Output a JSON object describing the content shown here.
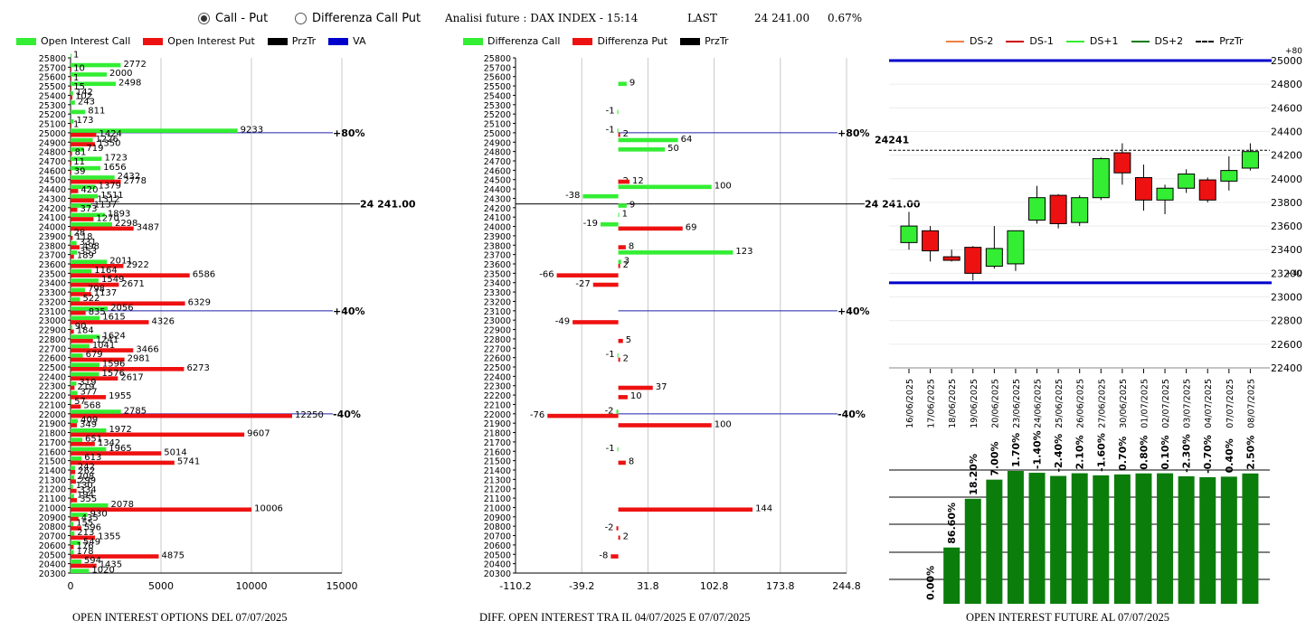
{
  "header": {
    "radio_call_put": "Call - Put",
    "radio_diff": "Differenza Call Put",
    "title": "Analisi future : DAX INDEX - 15:14",
    "last_label": "LAST",
    "last_value": "24 241.00",
    "change": "0.67%"
  },
  "legend1": {
    "a": "Open Interest Call",
    "b": "Open Interest Put",
    "c": "PrzTr",
    "d": "VA"
  },
  "legend2": {
    "a": "Differenza Call",
    "b": "Differenza Put",
    "c": "PrzTr"
  },
  "legend3": {
    "a": "DS-2",
    "b": "DS-1",
    "c": "DS+1",
    "d": "DS+2",
    "e": "PrzTr"
  },
  "footers": {
    "f1": "OPEN INTEREST OPTIONS DEL 07/07/2025",
    "f2": "DIFF. OPEN INTEREST TRA IL 04/07/2025 E 07/07/2025",
    "f3": "OPEN INTEREST FUTURE AL 07/07/2025"
  },
  "colors": {
    "call": "#33ee33",
    "put": "#ee1111",
    "przTr": "#000000",
    "va": "#0000cc",
    "vol": "#0b7d0b",
    "up": "#33ee33",
    "down": "#ee1111"
  },
  "chart_data": [
    {
      "type": "bar",
      "title": "OPEN INTEREST OPTIONS DEL 07/07/2025",
      "orientation": "horizontal",
      "strike_range": [
        20300,
        25800
      ],
      "xlim": [
        0,
        15000
      ],
      "x_ticks": [
        0,
        5000,
        10000,
        15000
      ],
      "price_line": {
        "strike": 24241,
        "label": "24 241.00"
      },
      "markers": [
        {
          "strike": 25000,
          "label": "+80%"
        },
        {
          "strike": 23100,
          "label": "+40%"
        },
        {
          "strike": 22000,
          "label": "-40%"
        }
      ],
      "bars": [
        [
          "call",
          25800,
          1
        ],
        [
          "call",
          25700,
          2772
        ],
        [
          "put",
          25700,
          10
        ],
        [
          "call",
          25600,
          2000
        ],
        [
          "put",
          25600,
          1
        ],
        [
          "call",
          25500,
          2498
        ],
        [
          "put",
          25500,
          15
        ],
        [
          "call",
          25400,
          142
        ],
        [
          "put",
          25400,
          102
        ],
        [
          "call",
          25300,
          243
        ],
        [
          "call",
          25200,
          811
        ],
        [
          "call",
          25100,
          173
        ],
        [
          "put",
          25100,
          1
        ],
        [
          "call",
          25000,
          9233
        ],
        [
          "put",
          25000,
          1424
        ],
        [
          "call",
          24900,
          1226
        ],
        [
          "put",
          24900,
          1350
        ],
        [
          "call",
          24800,
          719
        ],
        [
          "put",
          24800,
          81
        ],
        [
          "call",
          24700,
          1723
        ],
        [
          "put",
          24700,
          11
        ],
        [
          "call",
          24600,
          1656
        ],
        [
          "put",
          24600,
          39
        ],
        [
          "call",
          24500,
          2432
        ],
        [
          "put",
          24500,
          2778
        ],
        [
          "call",
          24400,
          1379
        ],
        [
          "put",
          24400,
          420
        ],
        [
          "call",
          24300,
          1511
        ],
        [
          "put",
          24300,
          1312
        ],
        [
          "call",
          24200,
          1137
        ],
        [
          "put",
          24200,
          373
        ],
        [
          "call",
          24100,
          1893
        ],
        [
          "put",
          24100,
          1270
        ],
        [
          "call",
          24000,
          2298
        ],
        [
          "put",
          24000,
          3487
        ],
        [
          "call",
          23900,
          28
        ],
        [
          "put",
          23900,
          118
        ],
        [
          "call",
          23800,
          331
        ],
        [
          "put",
          23800,
          498
        ],
        [
          "call",
          23700,
          353
        ],
        [
          "put",
          23700,
          189
        ],
        [
          "call",
          23600,
          2011
        ],
        [
          "put",
          23600,
          2922
        ],
        [
          "call",
          23500,
          1164
        ],
        [
          "put",
          23500,
          6586
        ],
        [
          "call",
          23400,
          1549
        ],
        [
          "put",
          23400,
          2671
        ],
        [
          "call",
          23300,
          798
        ],
        [
          "put",
          23300,
          1137
        ],
        [
          "call",
          23200,
          522
        ],
        [
          "put",
          23200,
          6329
        ],
        [
          "call",
          23100,
          2056
        ],
        [
          "put",
          23100,
          835
        ],
        [
          "call",
          23000,
          1615
        ],
        [
          "put",
          23000,
          4326
        ],
        [
          "call",
          22900,
          90
        ],
        [
          "put",
          22900,
          184
        ],
        [
          "call",
          22800,
          1624
        ],
        [
          "put",
          22800,
          1241
        ],
        [
          "call",
          22700,
          1041
        ],
        [
          "put",
          22700,
          3466
        ],
        [
          "call",
          22600,
          679
        ],
        [
          "put",
          22600,
          2981
        ],
        [
          "call",
          22500,
          1596
        ],
        [
          "put",
          22500,
          6273
        ],
        [
          "call",
          22400,
          1576
        ],
        [
          "put",
          22400,
          2617
        ],
        [
          "call",
          22300,
          319
        ],
        [
          "put",
          22300,
          219
        ],
        [
          "call",
          22200,
          377
        ],
        [
          "put",
          22200,
          1955
        ],
        [
          "call",
          22100,
          57
        ],
        [
          "put",
          22100,
          568
        ],
        [
          "call",
          22000,
          2785
        ],
        [
          "put",
          22000,
          12250
        ],
        [
          "call",
          21900,
          409
        ],
        [
          "put",
          21900,
          349
        ],
        [
          "call",
          21800,
          1972
        ],
        [
          "put",
          21800,
          9607
        ],
        [
          "call",
          21700,
          651
        ],
        [
          "put",
          21700,
          1342
        ],
        [
          "call",
          21600,
          1965
        ],
        [
          "put",
          21600,
          5014
        ],
        [
          "call",
          21500,
          613
        ],
        [
          "put",
          21500,
          5741
        ],
        [
          "call",
          21400,
          242
        ],
        [
          "put",
          21400,
          262
        ],
        [
          "call",
          21300,
          208
        ],
        [
          "put",
          21300,
          299
        ],
        [
          "call",
          21200,
          130
        ],
        [
          "put",
          21200,
          334
        ],
        [
          "call",
          21100,
          194
        ],
        [
          "put",
          21100,
          355
        ],
        [
          "call",
          21000,
          2078
        ],
        [
          "put",
          21000,
          10006
        ],
        [
          "call",
          20900,
          930
        ],
        [
          "put",
          20900,
          435
        ],
        [
          "call",
          20800,
          155
        ],
        [
          "put",
          20800,
          596
        ],
        [
          "call",
          20700,
          213
        ],
        [
          "put",
          20700,
          1355
        ],
        [
          "call",
          20600,
          549
        ],
        [
          "put",
          20600,
          176
        ],
        [
          "call",
          20500,
          178
        ],
        [
          "put",
          20500,
          4875
        ],
        [
          "call",
          20400,
          594
        ],
        [
          "put",
          20400,
          1435
        ],
        [
          "call",
          20300,
          1020
        ]
      ]
    },
    {
      "type": "bar",
      "title": "DIFF. OPEN INTEREST TRA IL 04/07/2025 E 07/07/2025",
      "orientation": "horizontal",
      "strike_range": [
        20300,
        25800
      ],
      "xlim": [
        -110.2,
        244.8
      ],
      "x_ticks": [
        "-110.2",
        "-39.2",
        "31.8",
        "102.8",
        "173.8",
        "244.8"
      ],
      "price_line": {
        "strike": 24241,
        "label": "24 241.00"
      },
      "markers": [
        {
          "strike": 25000,
          "label": "+80%"
        },
        {
          "strike": 23100,
          "label": "+40%"
        },
        {
          "strike": 22000,
          "label": "-40%"
        }
      ],
      "bars": [
        [
          "call",
          25500,
          9
        ],
        [
          "call",
          25200,
          -1
        ],
        [
          "call",
          25000,
          -1
        ],
        [
          "put",
          25000,
          2
        ],
        [
          "call",
          24900,
          64
        ],
        [
          "call",
          24800,
          50
        ],
        [
          "put",
          24500,
          2
        ],
        [
          "put",
          24500,
          12
        ],
        [
          "call",
          24400,
          100
        ],
        [
          "call",
          24300,
          -38
        ],
        [
          "call",
          24200,
          9
        ],
        [
          "call",
          24100,
          1
        ],
        [
          "call",
          24000,
          -19
        ],
        [
          "put",
          24000,
          69
        ],
        [
          "put",
          23800,
          8
        ],
        [
          "call",
          23700,
          123
        ],
        [
          "call",
          23600,
          3
        ],
        [
          "put",
          23600,
          2
        ],
        [
          "put",
          23500,
          -66
        ],
        [
          "put",
          23400,
          -27
        ],
        [
          "put",
          23000,
          -49
        ],
        [
          "put",
          22800,
          5
        ],
        [
          "call",
          22600,
          -1
        ],
        [
          "put",
          22600,
          2
        ],
        [
          "put",
          22300,
          37
        ],
        [
          "put",
          22200,
          10
        ],
        [
          "call",
          22000,
          -2
        ],
        [
          "put",
          22000,
          -76
        ],
        [
          "put",
          21900,
          100
        ],
        [
          "call",
          21600,
          -1
        ],
        [
          "put",
          21500,
          8
        ],
        [
          "put",
          21000,
          144
        ],
        [
          "put",
          20800,
          -2
        ],
        [
          "put",
          20700,
          2
        ],
        [
          "put",
          20500,
          -8
        ]
      ]
    },
    {
      "type": "candlestick",
      "title": "OPEN INTEREST FUTURE AL 07/07/2025",
      "ylim": [
        22400,
        25000
      ],
      "y_ticks": [
        22400,
        22600,
        22800,
        23000,
        23200,
        23400,
        23600,
        23800,
        24000,
        24200,
        24400,
        24600,
        24800,
        25000
      ],
      "price_label": "24241",
      "price": 24241,
      "levels": [
        {
          "value": 25000,
          "label": "+80"
        },
        {
          "value": 23120,
          "label": "+40"
        }
      ],
      "dates": [
        "16/06/2025",
        "17/06/2025",
        "18/06/2025",
        "19/06/2025",
        "20/06/2025",
        "23/06/2025",
        "24/06/2025",
        "25/06/2025",
        "26/06/2025",
        "27/06/2025",
        "30/06/2025",
        "01/07/2025",
        "02/07/2025",
        "03/07/2025",
        "04/07/2025",
        "07/07/2025",
        "08/07/2025"
      ],
      "ohlc": [
        [
          23460,
          23720,
          23400,
          23600
        ],
        [
          23560,
          23600,
          23300,
          23390
        ],
        [
          23340,
          23400,
          23300,
          23310
        ],
        [
          23420,
          23430,
          23140,
          23200
        ],
        [
          23260,
          23600,
          23240,
          23410
        ],
        [
          23280,
          23560,
          23220,
          23560
        ],
        [
          23650,
          23940,
          23620,
          23840
        ],
        [
          23860,
          23870,
          23580,
          23620
        ],
        [
          23630,
          23860,
          23600,
          23840
        ],
        [
          23840,
          24180,
          23820,
          24170
        ],
        [
          24220,
          24300,
          23950,
          24050
        ],
        [
          24010,
          24120,
          23730,
          23820
        ],
        [
          23820,
          23950,
          23700,
          23920
        ],
        [
          23920,
          24080,
          23880,
          24040
        ],
        [
          23990,
          24010,
          23800,
          23820
        ],
        [
          23980,
          24190,
          23900,
          24070
        ],
        [
          24090,
          24300,
          24070,
          24230
        ]
      ]
    },
    {
      "type": "bar",
      "title": "OPEN INTEREST FUTURE AL 07/07/2025 (changes)",
      "labels": [
        "0.00%",
        "86.60%",
        "18.20%",
        "7.00%",
        "1.70%",
        "-1.40%",
        "-2.40%",
        "2.10%",
        "-1.60%",
        "0.70%",
        "0.80%",
        "0.10%",
        "-2.30%",
        "-0.70%",
        "0.40%",
        "2.50%"
      ],
      "values": [
        0,
        100,
        186.6,
        220.6,
        236.1,
        232.8,
        227.2,
        232.0,
        228.3,
        229.9,
        231.7,
        231.9,
        226.6,
        225.0,
        225.9,
        231.6
      ]
    }
  ]
}
